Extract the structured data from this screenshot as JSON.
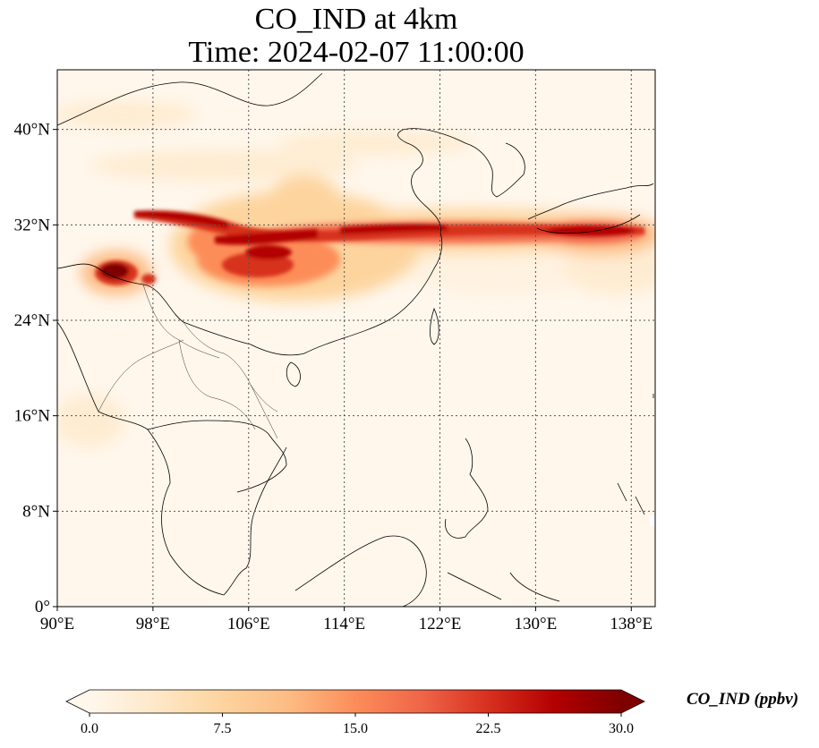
{
  "title": {
    "line1": "CO_IND at 4km",
    "line2": "Time: 2024-02-07 11:00:00"
  },
  "map": {
    "variable": "CO_IND",
    "units": "ppbv",
    "projection": "PlateCarree",
    "lon_range": [
      90,
      140
    ],
    "lat_range": [
      0,
      45
    ],
    "gridlines": true,
    "lon_ticks": [
      {
        "value": 90,
        "label": "90°E"
      },
      {
        "value": 98,
        "label": "98°E"
      },
      {
        "value": 106,
        "label": "106°E"
      },
      {
        "value": 114,
        "label": "114°E"
      },
      {
        "value": 122,
        "label": "122°E"
      },
      {
        "value": 130,
        "label": "130°E"
      },
      {
        "value": 138,
        "label": "138°E"
      }
    ],
    "lat_ticks": [
      {
        "value": 0,
        "label": "0°"
      },
      {
        "value": 8,
        "label": "8°N"
      },
      {
        "value": 16,
        "label": "16°N"
      },
      {
        "value": 24,
        "label": "24°N"
      },
      {
        "value": 32,
        "label": "32°N"
      },
      {
        "value": 40,
        "label": "40°N"
      }
    ],
    "colormap": "OrRd"
  },
  "colorbar": {
    "label": "CO_IND (ppbv)",
    "min": 0.0,
    "max": 30.0,
    "extend": "both",
    "ticks": [
      "0.0",
      "7.5",
      "15.0",
      "22.5",
      "30.0"
    ],
    "colors": [
      "#fff7ec",
      "#fee8c8",
      "#fdd49e",
      "#fdbb84",
      "#fc8d59",
      "#ef6548",
      "#d7301f",
      "#b30000",
      "#7f0000"
    ]
  }
}
